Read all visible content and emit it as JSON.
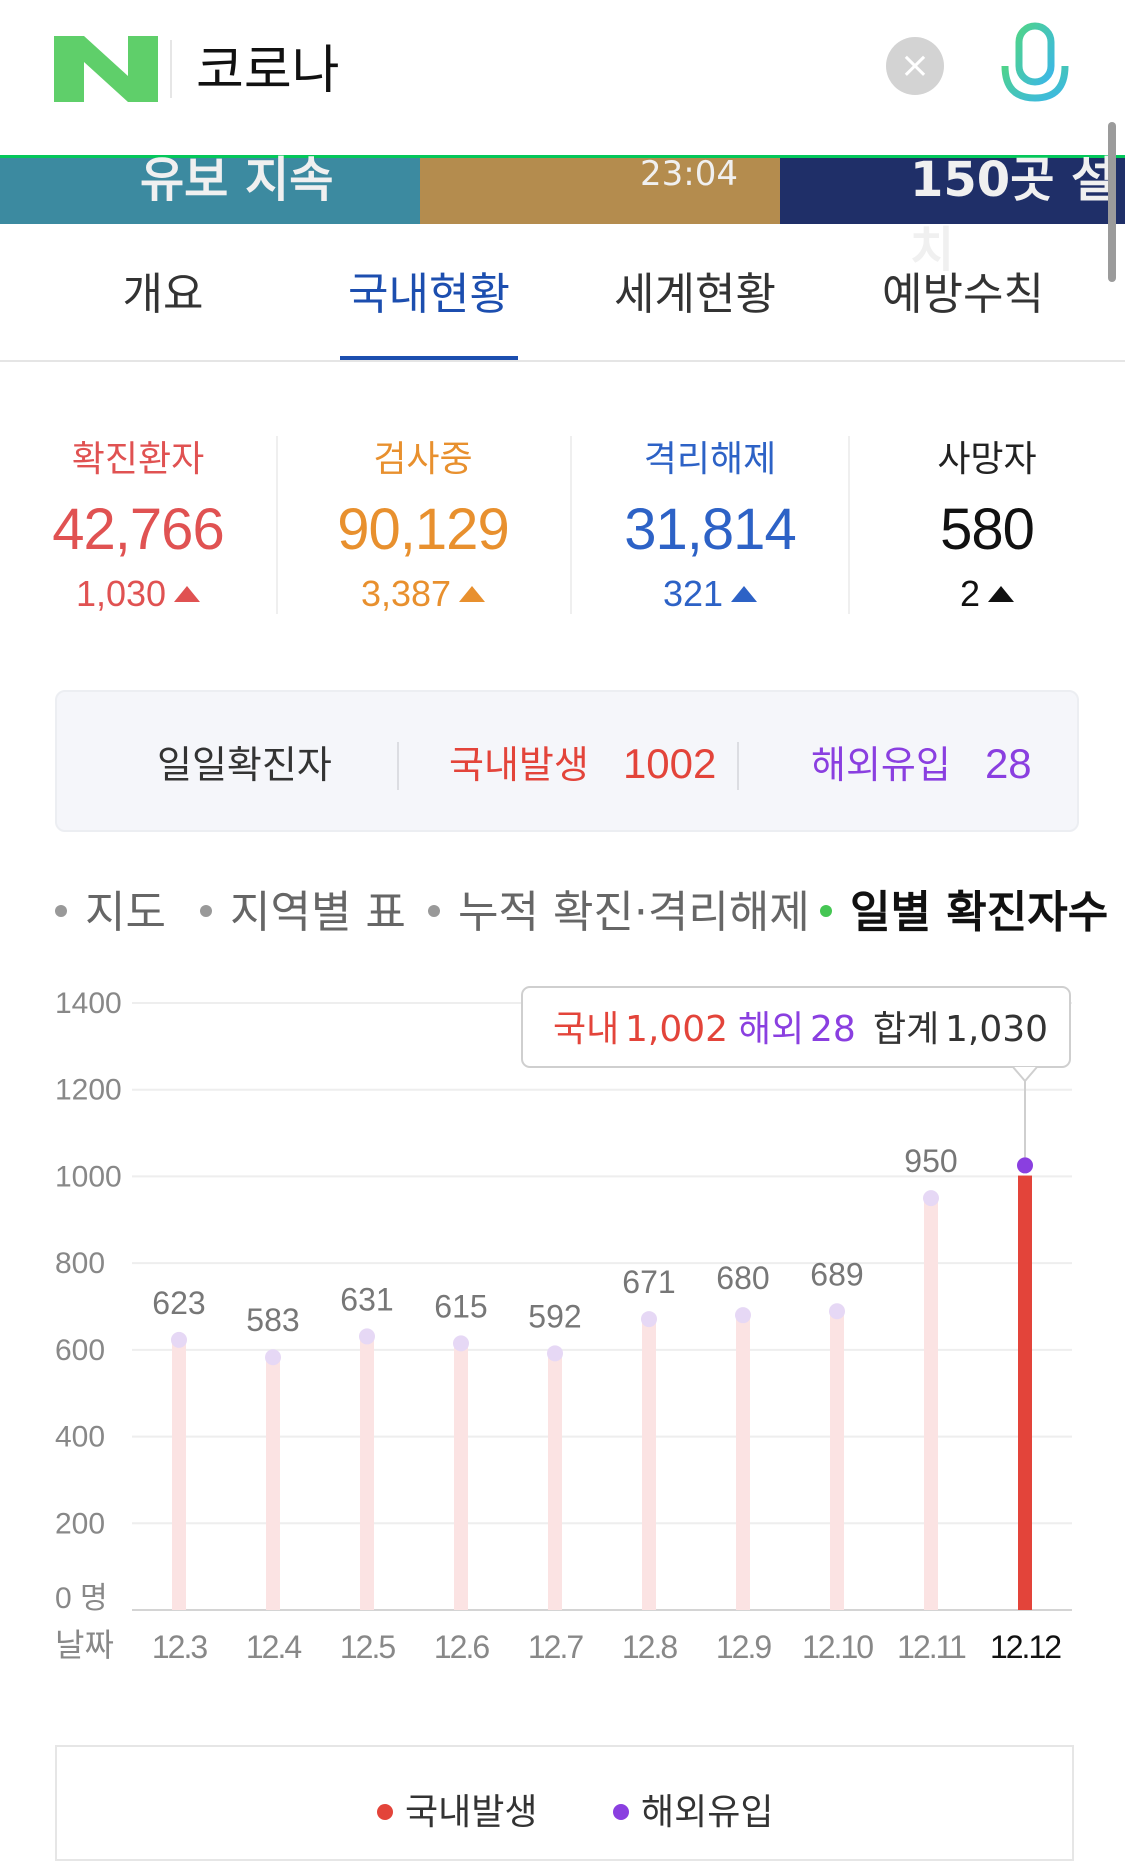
{
  "search": {
    "query": "코로나",
    "logo_letter": "N"
  },
  "banner": {
    "texts": [
      "유보 지속",
      "23:04",
      "150곳 설치"
    ]
  },
  "tabs": [
    {
      "label": "개요"
    },
    {
      "label": "국내현황"
    },
    {
      "label": "세계현황"
    },
    {
      "label": "예방수칙"
    }
  ],
  "active_tab": 1,
  "stats": [
    {
      "label": "확진환자",
      "value": "42,766",
      "delta": "1,030",
      "color": "#e05252"
    },
    {
      "label": "검사중",
      "value": "90,129",
      "delta": "3,387",
      "color": "#e8902e"
    },
    {
      "label": "격리해제",
      "value": "31,814",
      "delta": "321",
      "color": "#2d62c6"
    },
    {
      "label": "사망자",
      "value": "580",
      "delta": "2",
      "color": "#111111"
    }
  ],
  "daily": {
    "label": "일일확진자",
    "domestic_label": "국내발생",
    "domestic_value": "1002",
    "overseas_label": "해외유입",
    "overseas_value": "28"
  },
  "subnav": [
    {
      "label": "지도"
    },
    {
      "label": "지역별 표"
    },
    {
      "label": "누적 확진·격리해제"
    },
    {
      "label": "일별 확진자수"
    }
  ],
  "colors": {
    "domestic": "#e3443a",
    "overseas": "#8a3fe0",
    "faded_bar": "#fbe3e3",
    "faded_cap": "#e6d8f5",
    "accent": "#1c4eaf",
    "naver_green": "#03c75a"
  },
  "chart_data": {
    "type": "bar",
    "categories": [
      "12.3",
      "12.4",
      "12.5",
      "12.6",
      "12.7",
      "12.8",
      "12.9",
      "12.10",
      "12.11",
      "12.12"
    ],
    "values": [
      623,
      583,
      631,
      615,
      592,
      671,
      680,
      689,
      950,
      1030
    ],
    "domestic_last": 1002,
    "overseas_last": 28,
    "y_ticks": [
      "1400",
      "1200",
      "1000",
      "800",
      "600",
      "400",
      "200",
      "0 명"
    ],
    "ylim": [
      0,
      1400
    ],
    "x_axis_label": "날짜",
    "grid": true,
    "tooltip": {
      "domestic_label": "국내",
      "domestic_value": "1,002",
      "overseas_label": "해외",
      "overseas_value": "28",
      "total_label": "합계",
      "total_value": "1,030"
    }
  },
  "legend": {
    "domestic": "국내발생",
    "overseas": "해외유입"
  }
}
